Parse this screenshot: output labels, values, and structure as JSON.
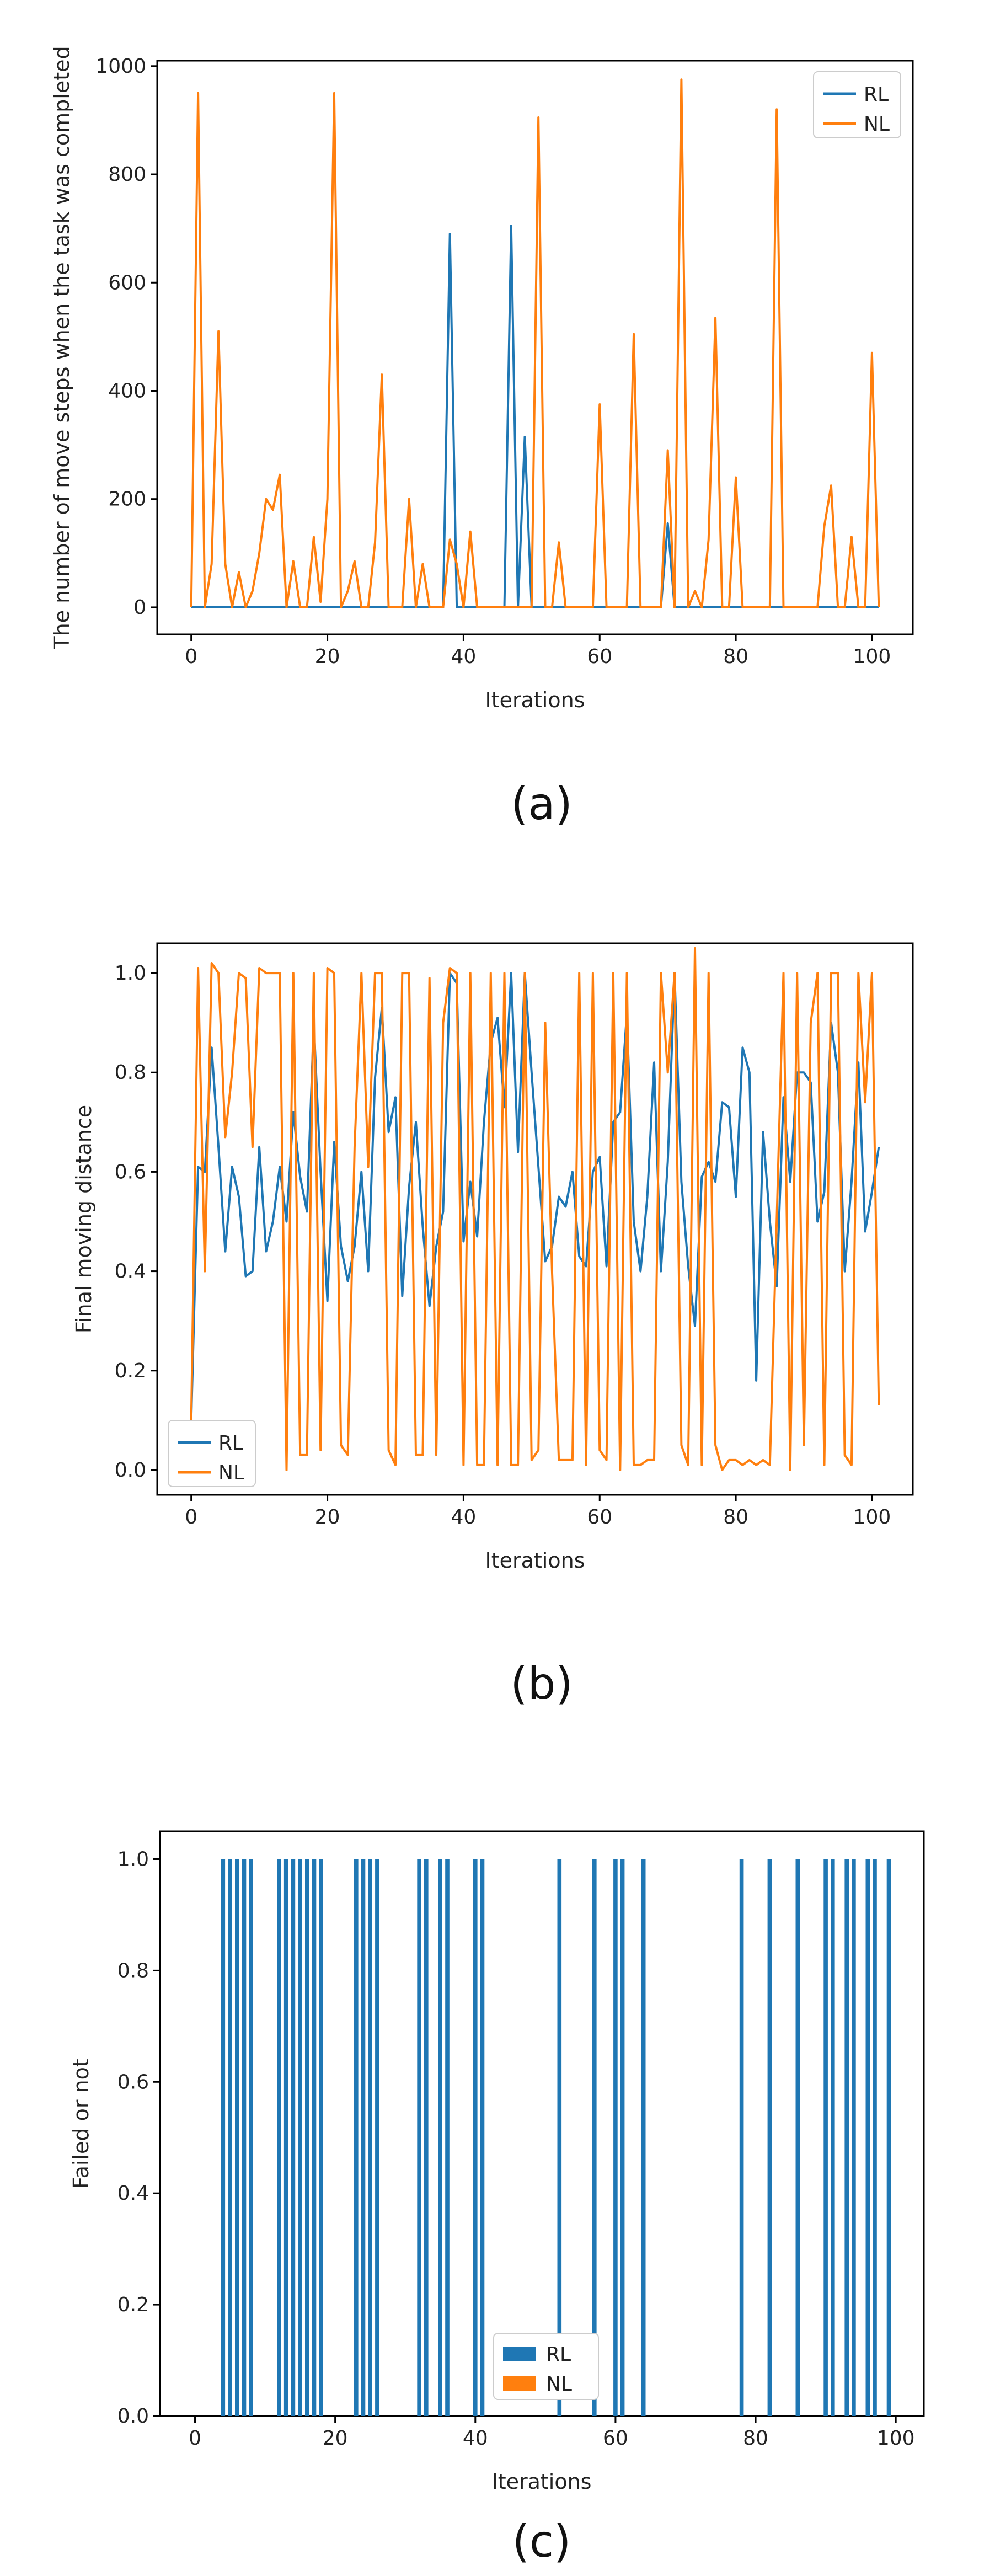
{
  "colors": {
    "RL": "#1f77b4",
    "NL": "#ff7f0e"
  },
  "chart_data": [
    {
      "type": "line",
      "caption": "(a)",
      "xlabel": "Iterations",
      "ylabel": "The number of move steps when the task was completed",
      "xlim": [
        -5,
        106
      ],
      "ylim": [
        -50,
        1010
      ],
      "xticks": [
        0,
        20,
        40,
        60,
        80,
        100
      ],
      "yticks": [
        0,
        200,
        400,
        600,
        800,
        1000
      ],
      "ytick_labels": [
        "0",
        "200",
        "400",
        "600",
        "800",
        "1000"
      ],
      "xtick_labels": [
        "0",
        "20",
        "40",
        "60",
        "80",
        "100"
      ],
      "legend": {
        "placement": "top-right",
        "entries": [
          "RL",
          "NL"
        ]
      },
      "series": [
        {
          "name": "RL",
          "points": [
            [
              0,
              0
            ],
            [
              37,
              0
            ],
            [
              38,
              690
            ],
            [
              39,
              0
            ],
            [
              46,
              0
            ],
            [
              47,
              705
            ],
            [
              48,
              0
            ],
            [
              49,
              315
            ],
            [
              50,
              0
            ],
            [
              69,
              0
            ],
            [
              70,
              155
            ],
            [
              71,
              0
            ],
            [
              101,
              0
            ]
          ]
        },
        {
          "name": "NL",
          "points": [
            [
              0,
              0
            ],
            [
              1,
              950
            ],
            [
              2,
              0
            ],
            [
              3,
              80
            ],
            [
              4,
              510
            ],
            [
              5,
              80
            ],
            [
              6,
              0
            ],
            [
              7,
              65
            ],
            [
              8,
              0
            ],
            [
              9,
              30
            ],
            [
              10,
              100
            ],
            [
              11,
              200
            ],
            [
              12,
              180
            ],
            [
              13,
              245
            ],
            [
              14,
              0
            ],
            [
              15,
              85
            ],
            [
              16,
              0
            ],
            [
              17,
              0
            ],
            [
              18,
              130
            ],
            [
              19,
              10
            ],
            [
              20,
              200
            ],
            [
              21,
              950
            ],
            [
              22,
              0
            ],
            [
              23,
              30
            ],
            [
              24,
              85
            ],
            [
              25,
              0
            ],
            [
              26,
              0
            ],
            [
              27,
              120
            ],
            [
              28,
              430
            ],
            [
              29,
              0
            ],
            [
              30,
              0
            ],
            [
              31,
              0
            ],
            [
              32,
              200
            ],
            [
              33,
              0
            ],
            [
              34,
              80
            ],
            [
              35,
              0
            ],
            [
              36,
              0
            ],
            [
              37,
              0
            ],
            [
              38,
              125
            ],
            [
              39,
              80
            ],
            [
              40,
              0
            ],
            [
              41,
              140
            ],
            [
              42,
              0
            ],
            [
              46,
              0
            ],
            [
              47,
              0
            ],
            [
              50,
              0
            ],
            [
              51,
              905
            ],
            [
              52,
              0
            ],
            [
              53,
              0
            ],
            [
              54,
              120
            ],
            [
              55,
              0
            ],
            [
              59,
              0
            ],
            [
              60,
              375
            ],
            [
              61,
              0
            ],
            [
              64,
              0
            ],
            [
              65,
              505
            ],
            [
              66,
              0
            ],
            [
              69,
              0
            ],
            [
              70,
              290
            ],
            [
              71,
              0
            ],
            [
              72,
              975
            ],
            [
              73,
              0
            ],
            [
              74,
              30
            ],
            [
              75,
              0
            ],
            [
              76,
              125
            ],
            [
              77,
              535
            ],
            [
              78,
              0
            ],
            [
              79,
              0
            ],
            [
              80,
              240
            ],
            [
              81,
              0
            ],
            [
              85,
              0
            ],
            [
              86,
              920
            ],
            [
              87,
              0
            ],
            [
              92,
              0
            ],
            [
              93,
              150
            ],
            [
              94,
              225
            ],
            [
              95,
              0
            ],
            [
              96,
              0
            ],
            [
              97,
              130
            ],
            [
              98,
              0
            ],
            [
              99,
              0
            ],
            [
              100,
              470
            ],
            [
              101,
              0
            ]
          ]
        }
      ]
    },
    {
      "type": "line",
      "caption": "(b)",
      "xlabel": "Iterations",
      "ylabel": "Final moving distance",
      "xlim": [
        -5,
        106
      ],
      "ylim": [
        -0.05,
        1.06
      ],
      "xticks": [
        0,
        20,
        40,
        60,
        80,
        100
      ],
      "xtick_labels": [
        "0",
        "20",
        "40",
        "60",
        "80",
        "100"
      ],
      "yticks": [
        0.0,
        0.2,
        0.4,
        0.6,
        0.8,
        1.0
      ],
      "ytick_labels": [
        "0.0",
        "0.2",
        "0.4",
        "0.6",
        "0.8",
        "1.0"
      ],
      "legend": {
        "placement": "bottom-left",
        "entries": [
          "RL",
          "NL"
        ]
      },
      "series": [
        {
          "name": "RL",
          "values": [
            0.1,
            0.61,
            0.6,
            0.85,
            0.65,
            0.44,
            0.61,
            0.55,
            0.39,
            0.4,
            0.65,
            0.44,
            0.5,
            0.61,
            0.5,
            0.72,
            0.59,
            0.52,
            0.9,
            0.6,
            0.34,
            0.66,
            0.45,
            0.38,
            0.45,
            0.6,
            0.4,
            0.79,
            0.93,
            0.68,
            0.75,
            0.35,
            0.57,
            0.7,
            0.49,
            0.33,
            0.45,
            0.52,
            1.0,
            0.98,
            0.46,
            0.58,
            0.47,
            0.7,
            0.86,
            0.91,
            0.73,
            1.0,
            0.64,
            1.0,
            0.8,
            0.61,
            0.42,
            0.45,
            0.55,
            0.53,
            0.6,
            0.43,
            0.41,
            0.6,
            0.63,
            0.41,
            0.7,
            0.72,
            0.92,
            0.5,
            0.4,
            0.55,
            0.82,
            0.4,
            0.62,
            1.0,
            0.58,
            0.41,
            0.29,
            0.59,
            0.62,
            0.58,
            0.74,
            0.73,
            0.55,
            0.85,
            0.8,
            0.18,
            0.68,
            0.5,
            0.37,
            0.75,
            0.58,
            0.8,
            0.8,
            0.78,
            0.5,
            0.56,
            0.9,
            0.8,
            0.4,
            0.58,
            0.82,
            0.48,
            0.56,
            0.65
          ]
        },
        {
          "name": "NL",
          "values": [
            0.1,
            1.01,
            0.4,
            1.02,
            1.0,
            0.67,
            0.8,
            1.0,
            0.99,
            0.65,
            1.01,
            1.0,
            1.0,
            1.0,
            0.0,
            1.0,
            0.03,
            0.03,
            1.0,
            0.04,
            1.01,
            1.0,
            0.05,
            0.03,
            0.65,
            1.0,
            0.61,
            1.0,
            1.0,
            0.04,
            0.01,
            1.0,
            1.0,
            0.03,
            0.03,
            0.99,
            0.03,
            0.9,
            1.01,
            1.0,
            0.01,
            1.0,
            0.01,
            0.01,
            1.0,
            0.01,
            1.0,
            0.01,
            0.01,
            1.0,
            0.02,
            0.04,
            0.9,
            0.4,
            0.02,
            0.02,
            0.02,
            1.0,
            0.01,
            1.0,
            0.04,
            0.02,
            1.0,
            0.0,
            1.0,
            0.01,
            0.01,
            0.02,
            0.02,
            1.0,
            0.8,
            1.0,
            0.05,
            0.01,
            1.05,
            0.01,
            1.0,
            0.05,
            0.0,
            0.02,
            0.02,
            0.01,
            0.02,
            0.01,
            0.02,
            0.01,
            0.5,
            1.0,
            0.0,
            1.0,
            0.05,
            0.9,
            1.0,
            0.01,
            1.0,
            1.0,
            0.03,
            0.01,
            1.0,
            0.74,
            1.0,
            0.13
          ]
        }
      ]
    },
    {
      "type": "bar",
      "caption": "(c)",
      "xlabel": "Iterations",
      "ylabel": "Failed or not",
      "xlim": [
        -5,
        104
      ],
      "ylim": [
        0,
        1.05
      ],
      "xticks": [
        0,
        20,
        40,
        60,
        80,
        100
      ],
      "xtick_labels": [
        "0",
        "20",
        "40",
        "60",
        "80",
        "100"
      ],
      "yticks": [
        0.0,
        0.2,
        0.4,
        0.6,
        0.8,
        1.0
      ],
      "ytick_labels": [
        "0.0",
        "0.2",
        "0.4",
        "0.6",
        "0.8",
        "1.0"
      ],
      "legend": {
        "placement": "bottom-center",
        "entries": [
          "RL",
          "NL"
        ]
      },
      "series": [
        {
          "name": "RL",
          "x": [
            4,
            5,
            6,
            7,
            8,
            12,
            13,
            14,
            15,
            16,
            17,
            18,
            23,
            24,
            25,
            26,
            32,
            33,
            35,
            36,
            40,
            41,
            52,
            57,
            60,
            61,
            64,
            78,
            82,
            86,
            90,
            91,
            93,
            94,
            96,
            97,
            99
          ],
          "values": [
            1,
            1,
            1,
            1,
            1,
            1,
            1,
            1,
            1,
            1,
            1,
            1,
            1,
            1,
            1,
            1,
            1,
            1,
            1,
            1,
            1,
            1,
            1,
            1,
            1,
            1,
            1,
            1,
            1,
            1,
            1,
            1,
            1,
            1,
            1,
            1,
            1
          ]
        },
        {
          "name": "NL",
          "x": [],
          "values": []
        }
      ]
    }
  ]
}
